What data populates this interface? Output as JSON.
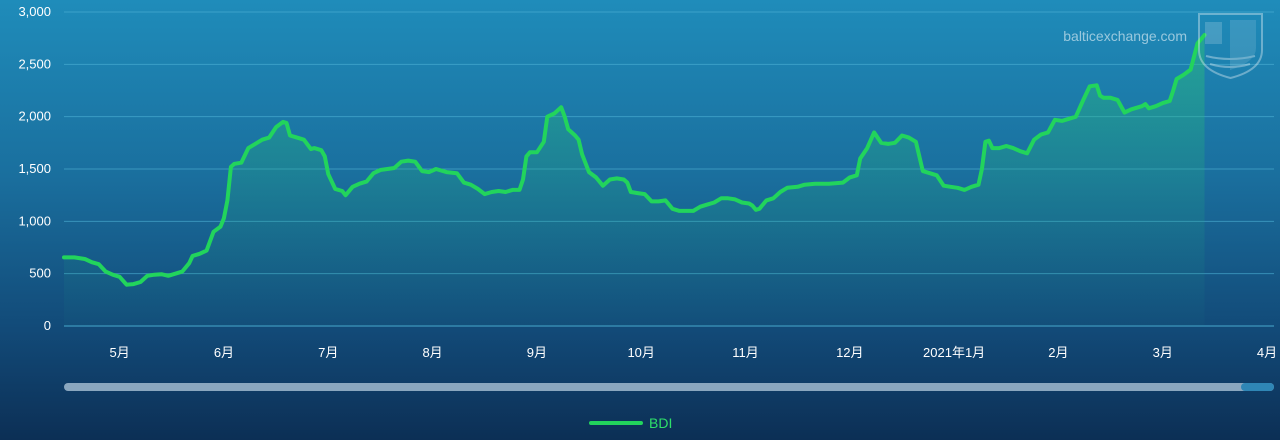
{
  "watermark": {
    "text": "balticexchange.com",
    "logo": "baltic-exchange-shield-logo"
  },
  "colors": {
    "line": "#22d45c",
    "grid": "#4fb3d6",
    "scrollbar_track": "#8aa7bf",
    "scrollbar_thumb": "#2f86b5"
  },
  "legend": {
    "label": "BDI",
    "placement": "bottom-center"
  },
  "chart_data": {
    "type": "area",
    "series": [
      {
        "name": "BDI",
        "points": [
          [
            0,
            655
          ],
          [
            3,
            655
          ],
          [
            6,
            640
          ],
          [
            8,
            610
          ],
          [
            10,
            590
          ],
          [
            12,
            520
          ],
          [
            14,
            490
          ],
          [
            16,
            470
          ],
          [
            18,
            395
          ],
          [
            20,
            400
          ],
          [
            22,
            420
          ],
          [
            24,
            480
          ],
          [
            26,
            490
          ],
          [
            28,
            495
          ],
          [
            30,
            480
          ],
          [
            32,
            500
          ],
          [
            34,
            520
          ],
          [
            36,
            600
          ],
          [
            37,
            670
          ],
          [
            39,
            690
          ],
          [
            41,
            720
          ],
          [
            43,
            900
          ],
          [
            45,
            950
          ],
          [
            46,
            1030
          ],
          [
            47,
            1200
          ],
          [
            48,
            1520
          ],
          [
            49,
            1550
          ],
          [
            51,
            1560
          ],
          [
            53,
            1700
          ],
          [
            55,
            1740
          ],
          [
            57,
            1780
          ],
          [
            59,
            1800
          ],
          [
            61,
            1900
          ],
          [
            63,
            1950
          ],
          [
            64,
            1940
          ],
          [
            65,
            1820
          ],
          [
            67,
            1800
          ],
          [
            69,
            1780
          ],
          [
            71,
            1690
          ],
          [
            72,
            1700
          ],
          [
            74,
            1680
          ],
          [
            75,
            1620
          ],
          [
            76,
            1450
          ],
          [
            78,
            1310
          ],
          [
            80,
            1290
          ],
          [
            81,
            1250
          ],
          [
            83,
            1330
          ],
          [
            85,
            1360
          ],
          [
            87,
            1380
          ],
          [
            89,
            1460
          ],
          [
            91,
            1490
          ],
          [
            93,
            1500
          ],
          [
            95,
            1510
          ],
          [
            97,
            1570
          ],
          [
            99,
            1580
          ],
          [
            101,
            1570
          ],
          [
            103,
            1480
          ],
          [
            105,
            1470
          ],
          [
            107,
            1500
          ],
          [
            110,
            1470
          ],
          [
            113,
            1460
          ],
          [
            115,
            1370
          ],
          [
            117,
            1350
          ],
          [
            119,
            1310
          ],
          [
            121,
            1260
          ],
          [
            123,
            1280
          ],
          [
            125,
            1290
          ],
          [
            127,
            1280
          ],
          [
            129,
            1300
          ],
          [
            131,
            1300
          ],
          [
            132,
            1400
          ],
          [
            133,
            1620
          ],
          [
            134,
            1660
          ],
          [
            136,
            1660
          ],
          [
            138,
            1760
          ],
          [
            139,
            2000
          ],
          [
            141,
            2030
          ],
          [
            143,
            2090
          ],
          [
            144,
            2000
          ],
          [
            145,
            1880
          ],
          [
            147,
            1820
          ],
          [
            148,
            1780
          ],
          [
            149,
            1640
          ],
          [
            151,
            1470
          ],
          [
            153,
            1420
          ],
          [
            155,
            1340
          ],
          [
            157,
            1400
          ],
          [
            159,
            1410
          ],
          [
            161,
            1400
          ],
          [
            162,
            1370
          ],
          [
            163,
            1280
          ],
          [
            165,
            1270
          ],
          [
            167,
            1260
          ],
          [
            169,
            1190
          ],
          [
            171,
            1190
          ],
          [
            173,
            1200
          ],
          [
            175,
            1120
          ],
          [
            177,
            1100
          ],
          [
            181,
            1100
          ],
          [
            183,
            1140
          ],
          [
            185,
            1160
          ],
          [
            187,
            1180
          ],
          [
            189,
            1220
          ],
          [
            191,
            1220
          ],
          [
            193,
            1210
          ],
          [
            195,
            1180
          ],
          [
            197,
            1170
          ],
          [
            198,
            1150
          ],
          [
            199,
            1110
          ],
          [
            200,
            1120
          ],
          [
            202,
            1200
          ],
          [
            204,
            1220
          ],
          [
            206,
            1280
          ],
          [
            208,
            1320
          ],
          [
            211,
            1330
          ],
          [
            213,
            1350
          ],
          [
            216,
            1360
          ],
          [
            220,
            1360
          ],
          [
            224,
            1370
          ],
          [
            226,
            1420
          ],
          [
            228,
            1440
          ],
          [
            229,
            1600
          ],
          [
            231,
            1700
          ],
          [
            233,
            1850
          ],
          [
            235,
            1750
          ],
          [
            237,
            1740
          ],
          [
            239,
            1750
          ],
          [
            241,
            1820
          ],
          [
            243,
            1800
          ],
          [
            245,
            1760
          ],
          [
            247,
            1480
          ],
          [
            249,
            1460
          ],
          [
            251,
            1440
          ],
          [
            253,
            1340
          ],
          [
            255,
            1330
          ],
          [
            257,
            1320
          ],
          [
            259,
            1300
          ],
          [
            261,
            1330
          ],
          [
            263,
            1350
          ],
          [
            264,
            1500
          ],
          [
            265,
            1760
          ],
          [
            266,
            1770
          ],
          [
            267,
            1700
          ],
          [
            269,
            1700
          ],
          [
            271,
            1720
          ],
          [
            273,
            1700
          ],
          [
            275,
            1670
          ],
          [
            277,
            1650
          ],
          [
            279,
            1780
          ],
          [
            281,
            1830
          ],
          [
            283,
            1850
          ],
          [
            285,
            1970
          ],
          [
            287,
            1960
          ],
          [
            289,
            1980
          ],
          [
            291,
            2000
          ],
          [
            293,
            2150
          ],
          [
            295,
            2290
          ],
          [
            297,
            2300
          ],
          [
            298,
            2200
          ],
          [
            299,
            2180
          ],
          [
            301,
            2180
          ],
          [
            303,
            2160
          ],
          [
            305,
            2040
          ],
          [
            307,
            2070
          ],
          [
            310,
            2100
          ],
          [
            311,
            2120
          ],
          [
            312,
            2080
          ],
          [
            314,
            2100
          ],
          [
            316,
            2130
          ],
          [
            318,
            2150
          ],
          [
            319,
            2250
          ],
          [
            320,
            2360
          ],
          [
            322,
            2400
          ],
          [
            324,
            2450
          ],
          [
            326,
            2700
          ],
          [
            328,
            2780
          ]
        ]
      }
    ],
    "x_ticks": [
      {
        "pos": 16,
        "label": "5月"
      },
      {
        "pos": 46,
        "label": "6月"
      },
      {
        "pos": 76,
        "label": "7月"
      },
      {
        "pos": 106,
        "label": "8月"
      },
      {
        "pos": 136,
        "label": "9月"
      },
      {
        "pos": 166,
        "label": "10月"
      },
      {
        "pos": 196,
        "label": "11月"
      },
      {
        "pos": 226,
        "label": "12月"
      },
      {
        "pos": 256,
        "label": "2021年1月"
      },
      {
        "pos": 286,
        "label": "2月"
      },
      {
        "pos": 316,
        "label": "3月"
      },
      {
        "pos": 346,
        "label": "4月"
      }
    ],
    "y_ticks": [
      {
        "value": 0,
        "label": "0"
      },
      {
        "value": 500,
        "label": "500"
      },
      {
        "value": 1000,
        "label": "1,000"
      },
      {
        "value": 1500,
        "label": "1,500"
      },
      {
        "value": 2000,
        "label": "2,000"
      },
      {
        "value": 2500,
        "label": "2,500"
      },
      {
        "value": 3000,
        "label": "3,000"
      }
    ],
    "ylim": [
      0,
      3000
    ],
    "grid": true,
    "scrollbar": {
      "visible": true
    }
  }
}
